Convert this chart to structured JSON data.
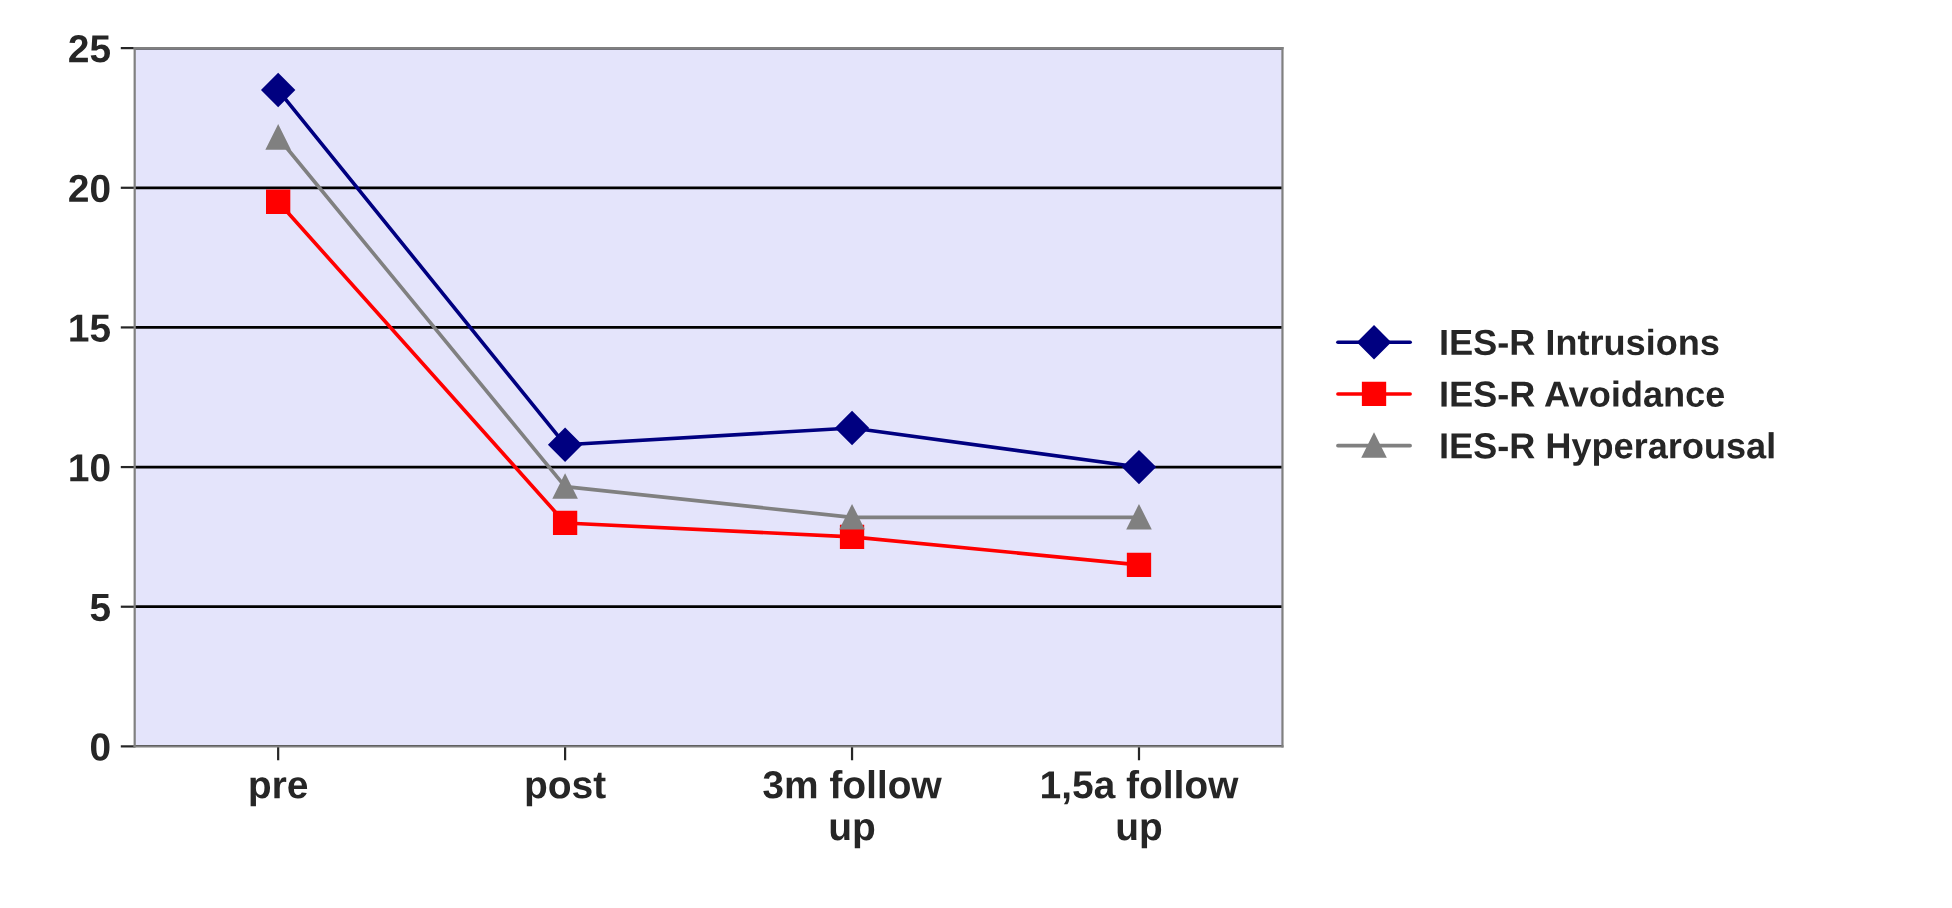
{
  "chart_data": {
    "type": "line",
    "categories": [
      "pre",
      "post",
      "3m follow\nup",
      "1,5a follow\nup"
    ],
    "series": [
      {
        "name": "IES-R Intrusions",
        "color": "#000080",
        "marker": "diamond",
        "values": [
          23.5,
          10.8,
          11.4,
          10.0
        ]
      },
      {
        "name": "IES-R Avoidance",
        "color": "#ff0000",
        "marker": "square",
        "values": [
          19.5,
          8.0,
          7.5,
          6.5
        ]
      },
      {
        "name": "IES-R Hyperarousal",
        "color": "#808080",
        "marker": "triangle",
        "values": [
          21.8,
          9.3,
          8.2,
          8.2
        ]
      }
    ],
    "ylim": [
      0,
      25
    ],
    "yticks": [
      0,
      5,
      10,
      15,
      20,
      25
    ],
    "grid": "y",
    "legend": "right",
    "line_style": "solid"
  }
}
